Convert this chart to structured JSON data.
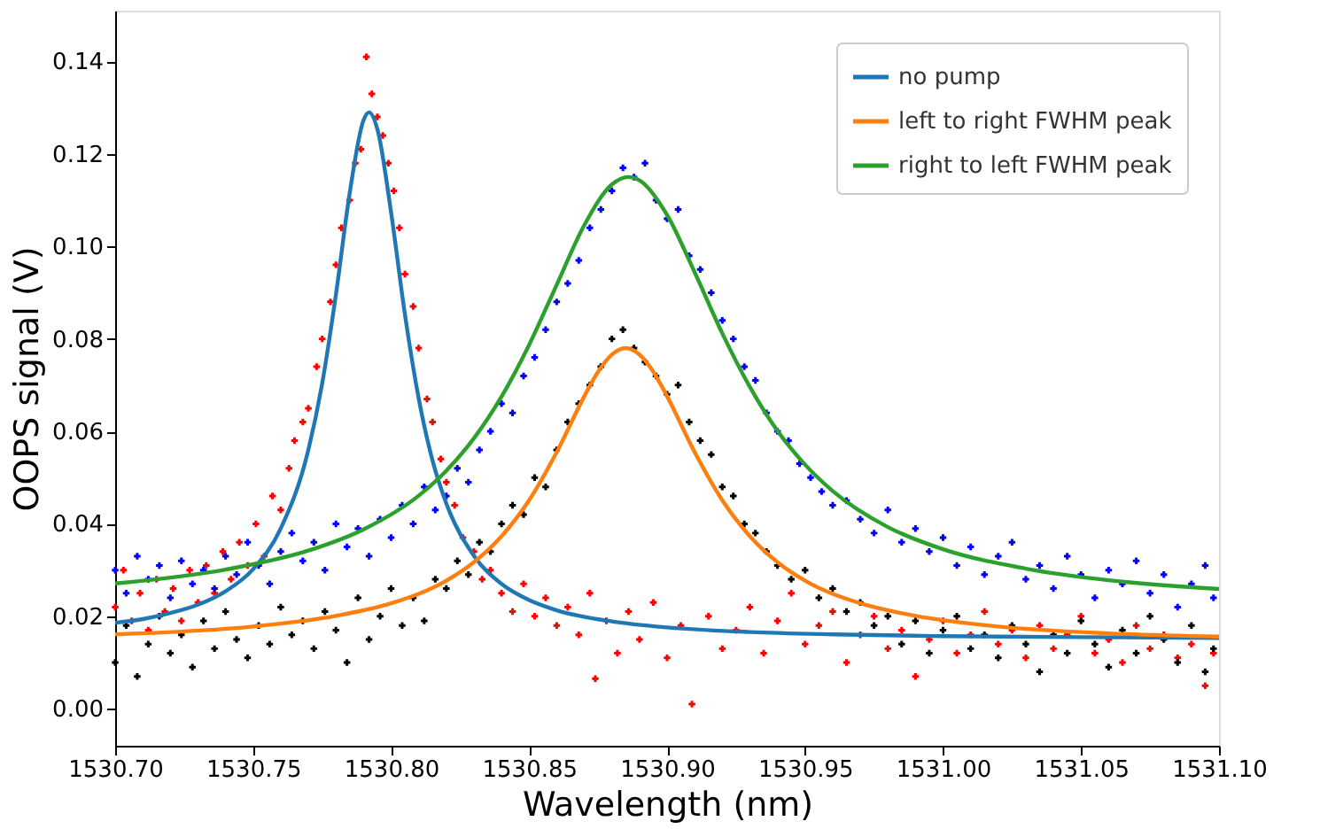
{
  "chart_data": {
    "type": "scatter",
    "xlabel": "Wavelength (nm)",
    "ylabel": "OOPS signal (V)",
    "xlim": [
      1530.7,
      1531.1
    ],
    "xticks": [
      {
        "value": 1530.7,
        "label": "1530.70"
      },
      {
        "value": 1530.75,
        "label": "1530.75"
      },
      {
        "value": 1530.8,
        "label": "1530.80"
      },
      {
        "value": 1530.85,
        "label": "1530.85"
      },
      {
        "value": 1530.9,
        "label": "1530.90"
      },
      {
        "value": 1530.95,
        "label": "1530.95"
      },
      {
        "value": 1531.0,
        "label": "1531.00"
      },
      {
        "value": 1531.05,
        "label": "1531.05"
      },
      {
        "value": 1531.1,
        "label": "1531.10"
      }
    ],
    "ylim": [
      -0.008,
      0.151
    ],
    "yticks": [
      {
        "value": 0,
        "label": "0.00"
      },
      {
        "value": 0.02,
        "label": "0.02"
      },
      {
        "value": 0.04,
        "label": "0.04"
      },
      {
        "value": 0.06,
        "label": "0.06"
      },
      {
        "value": 0.08,
        "label": "0.08"
      },
      {
        "value": 0.1,
        "label": "0.10"
      },
      {
        "value": 0.12,
        "label": "0.12"
      },
      {
        "value": 0.14,
        "label": "0.14"
      }
    ],
    "grid": false,
    "legend": "top right",
    "line_style": "solid",
    "series": [
      {
        "marker": "cross",
        "color": "#ff0000",
        "x": [
          1530.7,
          1530.703,
          1530.706,
          1530.709,
          1530.712,
          1530.715,
          1530.718,
          1530.721,
          1530.724,
          1530.727,
          1530.73,
          1530.733,
          1530.736,
          1530.739,
          1530.742,
          1530.745,
          1530.748,
          1530.751,
          1530.754,
          1530.757,
          1530.76,
          1530.763,
          1530.765,
          1530.768,
          1530.77,
          1530.773,
          1530.775,
          1530.778,
          1530.78,
          1530.782,
          1530.785,
          1530.787,
          1530.789,
          1530.791,
          1530.793,
          1530.795,
          1530.797,
          1530.799,
          1530.801,
          1530.803,
          1530.805,
          1530.808,
          1530.81,
          1530.813,
          1530.815,
          1530.818,
          1530.82,
          1530.823,
          1530.826,
          1530.83,
          1530.833,
          1530.836,
          1530.84,
          1530.844,
          1530.848,
          1530.852,
          1530.856,
          1530.86,
          1530.864,
          1530.868,
          1530.872,
          1530.874,
          1530.878,
          1530.882,
          1530.886,
          1530.89,
          1530.895,
          1530.9,
          1530.905,
          1530.909,
          1530.915,
          1530.92,
          1530.925,
          1530.93,
          1530.935,
          1530.94,
          1530.945,
          1530.95,
          1530.955,
          1530.96,
          1530.965,
          1530.97,
          1530.975,
          1530.98,
          1530.985,
          1530.99,
          1530.995,
          1531.0,
          1531.005,
          1531.01,
          1531.015,
          1531.02,
          1531.025,
          1531.03,
          1531.035,
          1531.04,
          1531.045,
          1531.05,
          1531.055,
          1531.06,
          1531.065,
          1531.07,
          1531.075,
          1531.08,
          1531.085,
          1531.09,
          1531.095,
          1531.098
        ],
        "values": [
          0.022,
          0.03,
          0.019,
          0.025,
          0.017,
          0.028,
          0.021,
          0.026,
          0.019,
          0.03,
          0.023,
          0.031,
          0.025,
          0.034,
          0.028,
          0.036,
          0.031,
          0.04,
          0.033,
          0.046,
          0.043,
          0.052,
          0.058,
          0.062,
          0.065,
          0.074,
          0.08,
          0.088,
          0.096,
          0.104,
          0.11,
          0.118,
          0.121,
          0.141,
          0.133,
          0.128,
          0.124,
          0.118,
          0.112,
          0.104,
          0.094,
          0.087,
          0.078,
          0.067,
          0.062,
          0.054,
          0.049,
          0.044,
          0.037,
          0.034,
          0.028,
          0.03,
          0.025,
          0.021,
          0.027,
          0.02,
          0.024,
          0.018,
          0.022,
          0.016,
          0.025,
          0.0065,
          0.019,
          0.012,
          0.021,
          0.015,
          0.023,
          0.011,
          0.018,
          0.001,
          0.02,
          0.013,
          0.017,
          0.022,
          0.012,
          0.019,
          0.025,
          0.014,
          0.018,
          0.021,
          0.01,
          0.016,
          0.02,
          0.013,
          0.017,
          0.007,
          0.015,
          0.019,
          0.012,
          0.016,
          0.021,
          0.014,
          0.017,
          0.011,
          0.018,
          0.013,
          0.016,
          0.02,
          0.012,
          0.015,
          0.01,
          0.018,
          0.013,
          0.016,
          0.011,
          0.014,
          0.005,
          0.012
        ]
      },
      {
        "marker": "cross",
        "color": "#0000ff",
        "x": [
          1530.7,
          1530.704,
          1530.708,
          1530.712,
          1530.716,
          1530.72,
          1530.724,
          1530.728,
          1530.732,
          1530.736,
          1530.74,
          1530.744,
          1530.748,
          1530.752,
          1530.756,
          1530.76,
          1530.764,
          1530.768,
          1530.772,
          1530.776,
          1530.78,
          1530.784,
          1530.788,
          1530.792,
          1530.796,
          1530.8,
          1530.804,
          1530.808,
          1530.812,
          1530.816,
          1530.82,
          1530.824,
          1530.828,
          1530.832,
          1530.836,
          1530.84,
          1530.844,
          1530.848,
          1530.852,
          1530.856,
          1530.86,
          1530.864,
          1530.868,
          1530.872,
          1530.876,
          1530.88,
          1530.884,
          1530.888,
          1530.892,
          1530.896,
          1530.9,
          1530.904,
          1530.908,
          1530.912,
          1530.916,
          1530.92,
          1530.924,
          1530.928,
          1530.932,
          1530.936,
          1530.94,
          1530.944,
          1530.948,
          1530.952,
          1530.956,
          1530.96,
          1530.965,
          1530.97,
          1530.975,
          1530.98,
          1530.985,
          1530.99,
          1530.995,
          1531.0,
          1531.005,
          1531.01,
          1531.015,
          1531.02,
          1531.025,
          1531.03,
          1531.035,
          1531.04,
          1531.045,
          1531.05,
          1531.055,
          1531.06,
          1531.065,
          1531.07,
          1531.075,
          1531.08,
          1531.085,
          1531.09,
          1531.095,
          1531.098
        ],
        "values": [
          0.03,
          0.025,
          0.033,
          0.028,
          0.031,
          0.024,
          0.032,
          0.027,
          0.03,
          0.026,
          0.033,
          0.029,
          0.036,
          0.031,
          0.027,
          0.034,
          0.038,
          0.032,
          0.036,
          0.03,
          0.04,
          0.035,
          0.039,
          0.033,
          0.041,
          0.037,
          0.044,
          0.04,
          0.048,
          0.043,
          0.046,
          0.052,
          0.049,
          0.056,
          0.06,
          0.066,
          0.064,
          0.072,
          0.076,
          0.082,
          0.088,
          0.092,
          0.097,
          0.104,
          0.108,
          0.112,
          0.117,
          0.115,
          0.118,
          0.11,
          0.106,
          0.108,
          0.098,
          0.095,
          0.09,
          0.084,
          0.08,
          0.074,
          0.071,
          0.064,
          0.06,
          0.058,
          0.053,
          0.05,
          0.047,
          0.044,
          0.045,
          0.041,
          0.038,
          0.043,
          0.036,
          0.039,
          0.034,
          0.037,
          0.031,
          0.035,
          0.029,
          0.033,
          0.036,
          0.028,
          0.031,
          0.026,
          0.033,
          0.029,
          0.024,
          0.03,
          0.027,
          0.032,
          0.025,
          0.029,
          0.022,
          0.027,
          0.031,
          0.024
        ]
      },
      {
        "marker": "cross",
        "color": "#000000",
        "x": [
          1530.7,
          1530.704,
          1530.708,
          1530.712,
          1530.716,
          1530.72,
          1530.724,
          1530.728,
          1530.732,
          1530.736,
          1530.74,
          1530.744,
          1530.748,
          1530.752,
          1530.756,
          1530.76,
          1530.764,
          1530.768,
          1530.772,
          1530.776,
          1530.78,
          1530.784,
          1530.788,
          1530.792,
          1530.796,
          1530.8,
          1530.804,
          1530.808,
          1530.812,
          1530.816,
          1530.82,
          1530.824,
          1530.828,
          1530.832,
          1530.836,
          1530.84,
          1530.844,
          1530.848,
          1530.852,
          1530.856,
          1530.86,
          1530.864,
          1530.868,
          1530.872,
          1530.876,
          1530.88,
          1530.884,
          1530.888,
          1530.892,
          1530.896,
          1530.9,
          1530.904,
          1530.908,
          1530.912,
          1530.916,
          1530.92,
          1530.924,
          1530.928,
          1530.932,
          1530.936,
          1530.94,
          1530.945,
          1530.95,
          1530.955,
          1530.96,
          1530.965,
          1530.97,
          1530.975,
          1530.98,
          1530.985,
          1530.99,
          1530.995,
          1531.0,
          1531.005,
          1531.01,
          1531.015,
          1531.02,
          1531.025,
          1531.03,
          1531.035,
          1531.04,
          1531.045,
          1531.05,
          1531.055,
          1531.06,
          1531.065,
          1531.07,
          1531.075,
          1531.08,
          1531.085,
          1531.09,
          1531.095,
          1531.098
        ],
        "values": [
          0.01,
          0.018,
          0.007,
          0.014,
          0.02,
          0.012,
          0.016,
          0.009,
          0.019,
          0.013,
          0.021,
          0.015,
          0.011,
          0.018,
          0.014,
          0.022,
          0.016,
          0.019,
          0.013,
          0.021,
          0.017,
          0.01,
          0.024,
          0.015,
          0.02,
          0.026,
          0.018,
          0.024,
          0.019,
          0.028,
          0.026,
          0.032,
          0.029,
          0.036,
          0.034,
          0.04,
          0.044,
          0.042,
          0.05,
          0.048,
          0.056,
          0.062,
          0.066,
          0.07,
          0.074,
          0.08,
          0.082,
          0.078,
          0.075,
          0.072,
          0.068,
          0.07,
          0.062,
          0.058,
          0.055,
          0.048,
          0.046,
          0.04,
          0.038,
          0.034,
          0.031,
          0.028,
          0.03,
          0.024,
          0.026,
          0.021,
          0.023,
          0.018,
          0.02,
          0.014,
          0.019,
          0.012,
          0.017,
          0.02,
          0.013,
          0.016,
          0.011,
          0.018,
          0.014,
          0.008,
          0.016,
          0.012,
          0.019,
          0.014,
          0.009,
          0.017,
          0.012,
          0.02,
          0.015,
          0.01,
          0.018,
          0.008,
          0.013
        ]
      },
      {
        "type": "line",
        "name": "no pump",
        "color": "#1f77b4",
        "x": [
          1530.7,
          1530.71,
          1530.72,
          1530.73,
          1530.74,
          1530.75,
          1530.76,
          1530.77,
          1530.775,
          1530.78,
          1530.785,
          1530.79,
          1530.792,
          1530.795,
          1530.8,
          1530.805,
          1530.81,
          1530.815,
          1530.82,
          1530.83,
          1530.84,
          1530.85,
          1530.86,
          1530.88,
          1530.9,
          1530.93,
          1530.96,
          1531.0,
          1531.05,
          1531.1
        ],
        "values": [
          0.0186,
          0.0194,
          0.0207,
          0.0225,
          0.0254,
          0.0302,
          0.039,
          0.056,
          0.0703,
          0.0896,
          0.1116,
          0.1273,
          0.129,
          0.1254,
          0.1073,
          0.0853,
          0.0671,
          0.0537,
          0.0444,
          0.0331,
          0.027,
          0.0235,
          0.0213,
          0.0189,
          0.0176,
          0.0166,
          0.0161,
          0.0157,
          0.0155,
          0.0153
        ]
      },
      {
        "type": "line",
        "name": "left to right FWHM peak",
        "color": "#ff7f0e",
        "x": [
          1530.7,
          1530.75,
          1530.78,
          1530.8,
          1530.82,
          1530.83,
          1530.84,
          1530.85,
          1530.86,
          1530.87,
          1530.875,
          1530.88,
          1530.885,
          1530.89,
          1530.895,
          1530.9,
          1530.91,
          1530.92,
          1530.93,
          1530.94,
          1530.95,
          1530.97,
          1530.99,
          1531.02,
          1531.06,
          1531.1
        ],
        "values": [
          0.0161,
          0.0178,
          0.0201,
          0.0228,
          0.0277,
          0.0317,
          0.0373,
          0.0451,
          0.0555,
          0.0676,
          0.0729,
          0.0766,
          0.078,
          0.0766,
          0.0729,
          0.0676,
          0.0555,
          0.0451,
          0.0373,
          0.0317,
          0.0277,
          0.0228,
          0.0201,
          0.0178,
          0.0163,
          0.0156
        ]
      },
      {
        "type": "line",
        "name": "right to left FWHM peak",
        "color": "#2ca02c",
        "x": [
          1530.7,
          1530.74,
          1530.77,
          1530.79,
          1530.81,
          1530.82,
          1530.83,
          1530.84,
          1530.85,
          1530.86,
          1530.87,
          1530.88,
          1530.886,
          1530.89,
          1530.9,
          1530.91,
          1530.92,
          1530.93,
          1530.94,
          1530.95,
          1530.96,
          1530.98,
          1531.0,
          1531.03,
          1531.06,
          1531.1
        ],
        "values": [
          0.0271,
          0.0301,
          0.0342,
          0.0388,
          0.0461,
          0.0515,
          0.0585,
          0.0675,
          0.0787,
          0.0917,
          0.1046,
          0.1134,
          0.115,
          0.1143,
          0.1068,
          0.0944,
          0.0812,
          0.0696,
          0.0601,
          0.0528,
          0.0471,
          0.0393,
          0.0345,
          0.0303,
          0.0278,
          0.0259
        ]
      }
    ]
  }
}
